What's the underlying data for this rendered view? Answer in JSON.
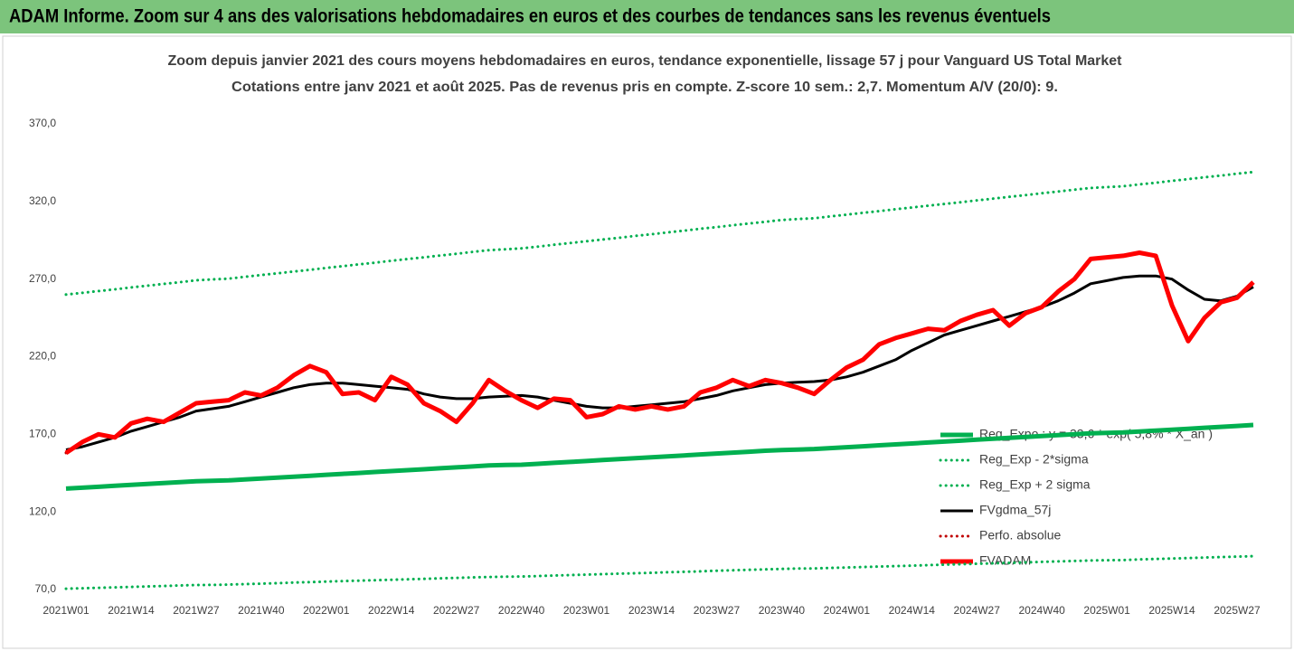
{
  "header": {
    "title": "ADAM Informe. Zoom sur 4 ans des valorisations hebdomadaires en euros et des courbes de tendances sans les revenus éventuels"
  },
  "chart_data": {
    "type": "line",
    "title": "Zoom depuis janvier 2021 des cours moyens hebdomadaires en euros, tendance exponentielle, lissage 57 j pour Vanguard US Total Market",
    "subtitle": "Cotations entre janv 2021 et août 2025.  Pas de revenus pris en compte. Z-score 10 sem.: 2,7. Momentum A/V (20/0): 9.",
    "categories": [
      "2021W01",
      null,
      null,
      null,
      "2021W14",
      null,
      null,
      null,
      "2021W27",
      null,
      null,
      null,
      "2021W40",
      null,
      null,
      null,
      "2022W01",
      null,
      null,
      null,
      "2022W14",
      null,
      null,
      null,
      "2022W27",
      null,
      null,
      null,
      "2022W40",
      null,
      null,
      null,
      "2023W01",
      null,
      null,
      null,
      "2023W14",
      null,
      null,
      null,
      "2023W27",
      null,
      null,
      null,
      "2023W40",
      null,
      null,
      null,
      "2024W01",
      null,
      null,
      null,
      "2024W14",
      null,
      null,
      null,
      "2024W27",
      null,
      null,
      null,
      "2024W40",
      null,
      null,
      null,
      "2025W01",
      null,
      null,
      null,
      "2025W14",
      null,
      null,
      null,
      "2025W27",
      null
    ],
    "ylim": [
      70,
      370
    ],
    "yticks": [
      {
        "value": 70,
        "label": "70,0"
      },
      {
        "value": 120,
        "label": "120,0"
      },
      {
        "value": 170,
        "label": "170,0"
      },
      {
        "value": 220,
        "label": "220,0"
      },
      {
        "value": 270,
        "label": "270,0"
      },
      {
        "value": 320,
        "label": "320,0"
      },
      {
        "value": 370,
        "label": "370,0"
      }
    ],
    "grid": false,
    "legend": "right",
    "series": [
      {
        "name": "Reg_Expo : y = 33,6 * exp( 5,8% * X_an )",
        "color": "#00b050",
        "dotted": false,
        "values": [
          135.0,
          135.6,
          136.2,
          136.8,
          137.4,
          138.0,
          138.6,
          139.2,
          139.8,
          140.1,
          140.3,
          140.9,
          141.5,
          142.1,
          142.7,
          143.3,
          143.9,
          144.5,
          145.1,
          145.7,
          146.3,
          146.9,
          147.5,
          148.1,
          148.7,
          149.3,
          149.9,
          150.2,
          150.4,
          151.0,
          151.6,
          152.2,
          152.8,
          153.4,
          154.0,
          154.6,
          155.2,
          155.8,
          156.4,
          157.0,
          157.6,
          158.2,
          158.8,
          159.4,
          159.9,
          160.2,
          160.5,
          161.1,
          161.7,
          162.3,
          162.9,
          163.5,
          164.1,
          164.7,
          165.3,
          165.9,
          166.5,
          167.1,
          167.7,
          168.3,
          168.9,
          169.5,
          170.0,
          170.6,
          170.9,
          171.2,
          171.8,
          172.4,
          173.0,
          173.6,
          174.2,
          174.8,
          175.4,
          176.0
        ]
      },
      {
        "name": "Reg_Exp - 2*sigma",
        "color": "#00b050",
        "dotted": true,
        "values": [
          70.5,
          70.8,
          71.1,
          71.4,
          71.7,
          72.0,
          72.3,
          72.6,
          72.9,
          73.0,
          73.2,
          73.5,
          73.8,
          74.1,
          74.5,
          74.8,
          75.1,
          75.4,
          75.7,
          76.0,
          76.3,
          76.6,
          76.9,
          77.2,
          77.5,
          77.8,
          78.1,
          78.3,
          78.4,
          78.7,
          79.0,
          79.3,
          79.6,
          79.9,
          80.2,
          80.5,
          80.8,
          81.1,
          81.4,
          81.7,
          82.1,
          82.4,
          82.7,
          83.0,
          83.3,
          83.5,
          83.6,
          83.9,
          84.2,
          84.5,
          84.8,
          85.1,
          85.4,
          85.7,
          86.0,
          86.3,
          86.6,
          86.9,
          87.2,
          87.5,
          87.8,
          88.1,
          88.4,
          88.7,
          88.9,
          89.0,
          89.4,
          89.7,
          90.0,
          90.3,
          90.6,
          90.9,
          91.2,
          91.5
        ]
      },
      {
        "name": "Reg_Exp + 2 sigma",
        "color": "#00b050",
        "dotted": true,
        "values": [
          260.0,
          261.1,
          262.3,
          263.4,
          264.6,
          265.7,
          266.9,
          268.0,
          269.2,
          269.8,
          270.3,
          271.5,
          272.6,
          273.7,
          274.9,
          276.0,
          277.2,
          278.3,
          279.5,
          280.6,
          281.8,
          282.9,
          284.0,
          285.2,
          286.3,
          287.5,
          288.6,
          289.2,
          289.8,
          290.9,
          292.1,
          293.2,
          294.4,
          295.5,
          296.6,
          297.8,
          298.9,
          300.1,
          301.2,
          302.4,
          303.5,
          304.7,
          305.8,
          306.9,
          308.1,
          308.7,
          309.2,
          310.4,
          311.5,
          312.7,
          313.8,
          315.0,
          316.1,
          317.3,
          318.4,
          319.5,
          320.7,
          321.8,
          323.0,
          324.1,
          325.3,
          326.4,
          327.6,
          328.7,
          329.3,
          329.8,
          331.0,
          332.1,
          333.3,
          334.4,
          335.6,
          336.7,
          337.9,
          339.0
        ]
      },
      {
        "name": "FVgdma_57j",
        "color": "#000000",
        "dotted": false,
        "values": [
          160,
          162,
          165,
          168,
          172,
          175,
          178,
          181,
          185,
          186.5,
          188,
          191,
          194,
          197,
          200,
          202,
          203,
          203,
          202,
          201,
          200,
          199,
          196,
          194,
          193,
          193,
          194,
          194.5,
          195,
          194,
          192,
          190,
          188,
          187,
          187,
          188,
          189,
          190,
          191,
          193,
          195,
          198,
          200,
          202,
          203,
          203.5,
          204,
          205,
          207,
          210,
          214,
          218,
          224,
          229,
          234,
          237,
          240,
          243,
          246,
          249,
          252,
          256,
          261,
          267,
          269,
          271,
          272,
          272,
          270,
          263,
          257,
          256,
          259,
          265
        ]
      },
      {
        "name": "Perfo. absolue",
        "color": "#c00000",
        "dotted": true,
        "values": [
          158,
          165,
          170,
          168,
          177,
          180,
          178,
          184,
          190,
          191,
          192,
          197,
          195,
          200,
          208,
          214,
          210,
          196,
          197,
          192,
          207,
          202,
          190,
          185,
          178,
          190,
          205,
          198,
          192,
          187,
          193,
          192,
          181,
          183,
          188,
          186,
          188,
          186,
          188,
          197,
          200,
          205,
          201,
          205,
          203,
          200,
          196,
          205,
          213,
          218,
          228,
          232,
          235,
          238,
          237,
          243,
          247,
          250,
          240,
          248,
          252,
          262,
          270,
          283,
          284,
          285,
          287,
          285,
          253,
          230,
          245,
          255,
          258,
          268
        ]
      },
      {
        "name": "FVADAM",
        "color": "#ff0000",
        "dotted": false,
        "values": [
          158,
          165,
          170,
          168,
          177,
          180,
          178,
          184,
          190,
          191,
          192,
          197,
          195,
          200,
          208,
          214,
          210,
          196,
          197,
          192,
          207,
          202,
          190,
          185,
          178,
          190,
          205,
          198,
          192,
          187,
          193,
          192,
          181,
          183,
          188,
          186,
          188,
          186,
          188,
          197,
          200,
          205,
          201,
          205,
          203,
          200,
          196,
          205,
          213,
          218,
          228,
          232,
          235,
          238,
          237,
          243,
          247,
          250,
          240,
          248,
          252,
          262,
          270,
          283,
          284,
          285,
          287,
          285,
          253,
          230,
          245,
          255,
          258,
          268
        ]
      }
    ]
  }
}
